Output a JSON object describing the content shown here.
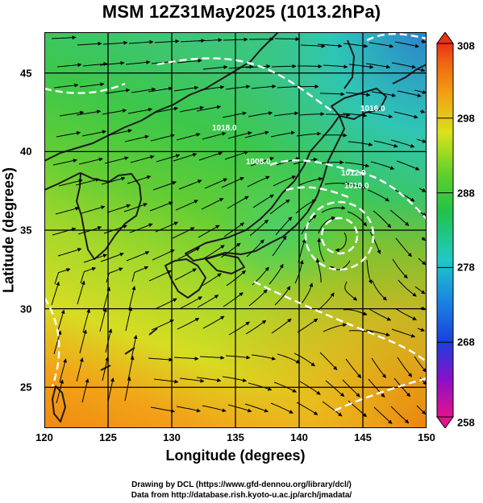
{
  "title": "MSM 12Z31May2025 (1013.2hPa)",
  "xlabel": "Longitude (degrees)",
  "ylabel": "Latitude  (degrees)",
  "x_ticks": [
    "120",
    "125",
    "130",
    "135",
    "140",
    "145",
    "150"
  ],
  "y_ticks": [
    "25",
    "30",
    "35",
    "40",
    "45"
  ],
  "colorbar": {
    "ticks": [
      "258",
      "268",
      "278",
      "288",
      "298",
      "308"
    ],
    "min": 258,
    "max": 308
  },
  "contour_labels": [
    "1016.0",
    "1008.0",
    "1012.0",
    "1010.0",
    "1018.0"
  ],
  "credits": {
    "line1": "Drawing by DCL (https://www.gfd-dennou.org/library/dcl/)",
    "line2": "Data from http://database.rish.kyoto-u.ac.jp/arch/jmadata/"
  },
  "chart_data": {
    "type": "heatmap",
    "title": "MSM 12Z31May2025 (1013.2hPa)",
    "xlabel": "Longitude (degrees)",
    "ylabel": "Latitude  (degrees)",
    "xlim": [
      120,
      150
    ],
    "ylim": [
      22.4,
      47.6
    ],
    "colorbar_range": [
      258,
      308
    ],
    "x_ticks": [
      120,
      125,
      130,
      135,
      140,
      145,
      150
    ],
    "y_ticks": [
      25,
      30,
      35,
      40,
      45
    ],
    "cyclone_center": {
      "lon": 143,
      "lat": 35.2
    },
    "field_description": "temperature shading with wind streamlines and isobar contours",
    "grid": true
  },
  "colors": {
    "cold": "#1c7ec5",
    "cool": "#2fd1b0",
    "mid": "#3fc93a",
    "warm": "#cfe11f",
    "hot": "#f08c0c"
  }
}
